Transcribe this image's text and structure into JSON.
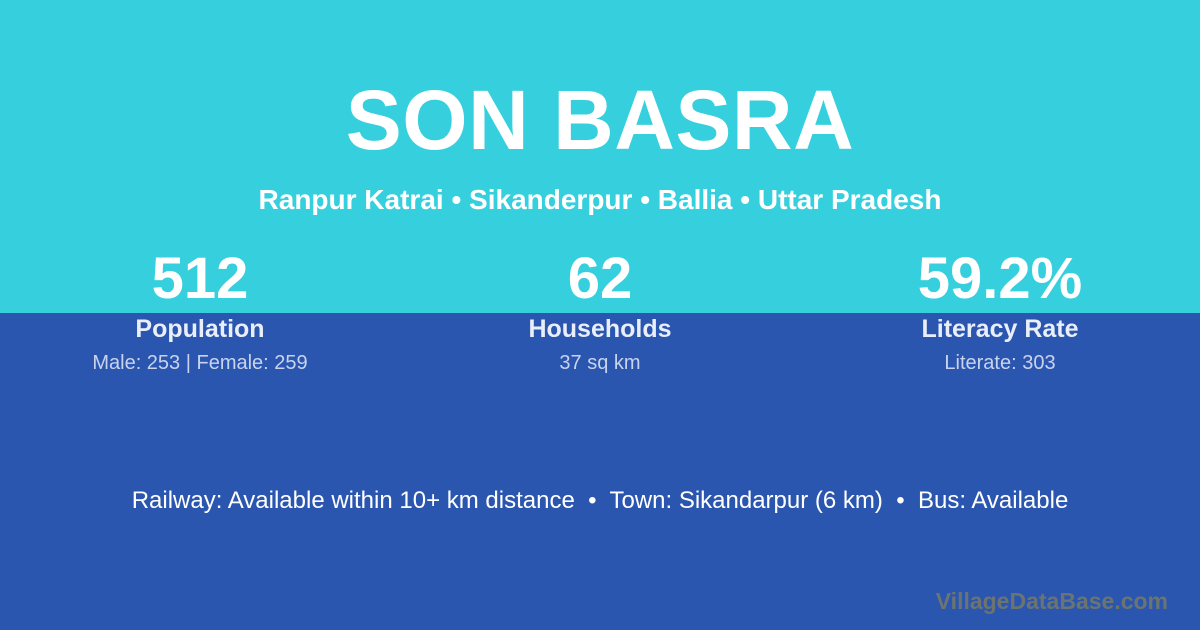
{
  "theme": {
    "top_bg": "#36cfdd",
    "bottom_bg": "#2a56b0",
    "text_white": "#ffffff",
    "label_color": "#e9eef9",
    "muted_color": "#c9d3ec",
    "watermark_color": "#6b7470"
  },
  "header": {
    "title": "SON BASRA",
    "breadcrumb": "Ranpur Katrai • Sikanderpur • Ballia • Uttar Pradesh"
  },
  "stats": [
    {
      "value": "512",
      "label": "Population",
      "detail": "Male: 253 | Female: 259"
    },
    {
      "value": "62",
      "label": "Households",
      "detail": "37 sq km"
    },
    {
      "value": "59.2%",
      "label": "Literacy Rate",
      "detail": "Literate: 303"
    }
  ],
  "amenities": {
    "text": "Railway: Available within 10+ km distance  •  Town: Sikandarpur (6 km)  •  Bus: Available"
  },
  "watermark": "VillageDataBase.com"
}
